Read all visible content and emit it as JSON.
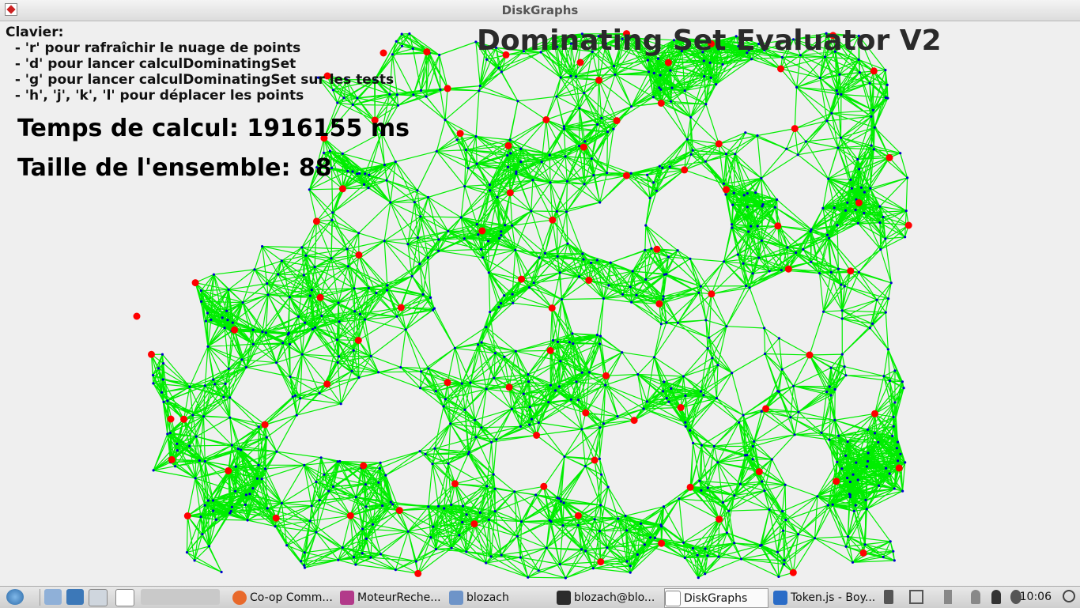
{
  "window": {
    "title": "DiskGraphs"
  },
  "canvas": {
    "heading": "Dominating Set Evaluator V2",
    "keyboard_help": [
      "Clavier:",
      "  - 'r' pour rafraîchir le nuage de points",
      "  - 'd' pour lancer calculDominatingSet",
      "  - 'g' pour lancer calculDominatingSet sur les tests",
      "  - 'h', 'j', 'k', 'l' pour déplacer les points"
    ],
    "compute_time": "Temps de calcul: 1916155 ms",
    "set_size": "Taille de l'ensemble: 88"
  },
  "colors": {
    "edge": "#00ee00",
    "point": "#0000cc",
    "dominating": "#ff0000",
    "background": "#efefef"
  },
  "taskbar": {
    "tasks": [
      {
        "label": "Co-op Comm...",
        "icon": "firefox-icon",
        "color": "#e8692b"
      },
      {
        "label": "MoteurReche...",
        "icon": "intellij-icon",
        "color": "#b23a8a"
      },
      {
        "label": "blozach",
        "icon": "folder-icon",
        "color": "#6e94c8"
      },
      {
        "label": "blozach@blo...",
        "icon": "terminal-icon",
        "color": "#2b2b2b"
      },
      {
        "label": "DiskGraphs",
        "icon": "java-app-icon",
        "color": "#ffffff",
        "active": true
      },
      {
        "label": "Token.js - Boy...",
        "icon": "vscode-icon",
        "color": "#2a6cc7"
      }
    ],
    "clock": "10:06"
  }
}
